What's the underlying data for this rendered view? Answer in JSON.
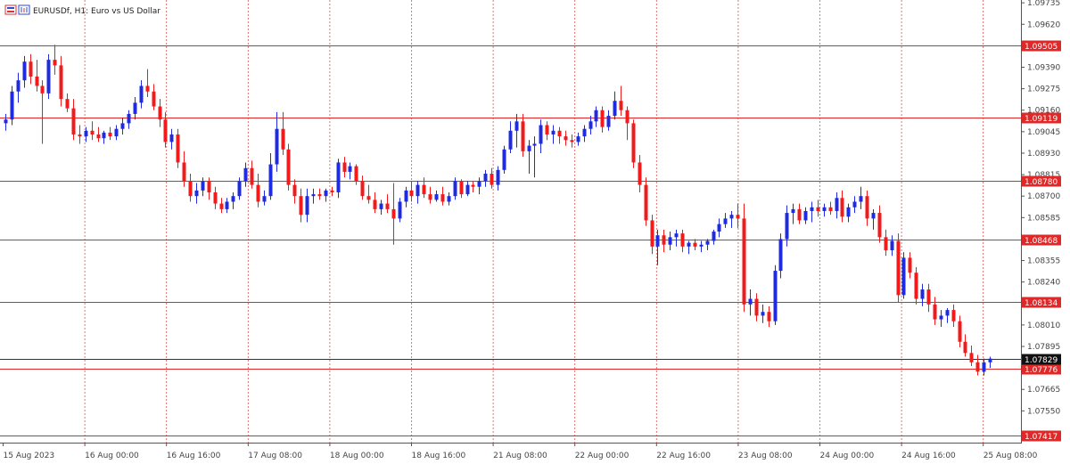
{
  "window": {
    "title": "EURUSDf, H1:  Euro vs US Dollar",
    "icon": "chart-window-icon"
  },
  "colors": {
    "bull": "#1f2be0",
    "bear": "#f21a1a",
    "grid": "#e03030",
    "level": "#e02828",
    "current": "#333333",
    "axis_text": "#444444",
    "background": "#ffffff"
  },
  "chart_data": {
    "type": "candlestick",
    "symbol": "EURUSDf",
    "timeframe": "H1",
    "price_axis_ticks": [
      "1.09735",
      "1.09620",
      "1.09390",
      "1.09275",
      "1.09160",
      "1.09045",
      "1.08930",
      "1.08815",
      "1.08700",
      "1.08585",
      "1.08355",
      "1.08240",
      "1.08010",
      "1.07895",
      "1.07665",
      "1.07550"
    ],
    "time_axis_labels": [
      "15 Aug 2023",
      "16 Aug 00:00",
      "16 Aug 16:00",
      "17 Aug 08:00",
      "18 Aug 00:00",
      "18 Aug 16:00",
      "21 Aug 08:00",
      "22 Aug 00:00",
      "22 Aug 16:00",
      "23 Aug 08:00",
      "24 Aug 00:00",
      "24 Aug 16:00",
      "25 Aug 08:00"
    ],
    "ylim": [
      1.0738,
      1.0975
    ],
    "horizontal_levels": [
      {
        "label": "1.09505",
        "price": 1.09505
      },
      {
        "label": "1.09119",
        "price": 1.09119
      },
      {
        "label": "1.08780",
        "price": 1.0878
      },
      {
        "label": "1.08468",
        "price": 1.08468
      },
      {
        "label": "1.08134",
        "price": 1.08134
      },
      {
        "label": "1.07776",
        "price": 1.07776
      },
      {
        "label": "1.07417",
        "price": 1.07417
      }
    ],
    "current_price": {
      "label": "1.07829",
      "price": 1.07829
    },
    "candles": [
      [
        1.0909,
        1.0914,
        1.0905,
        1.0911
      ],
      [
        1.0911,
        1.0929,
        1.0908,
        1.0926
      ],
      [
        1.0926,
        1.0936,
        1.092,
        1.0932
      ],
      [
        1.0932,
        1.0945,
        1.0928,
        1.0942
      ],
      [
        1.0942,
        1.0946,
        1.093,
        1.0934
      ],
      [
        1.0934,
        1.0943,
        1.0926,
        1.0929
      ],
      [
        1.0929,
        1.0932,
        1.0898,
        1.0925
      ],
      [
        1.0925,
        1.0946,
        1.0922,
        1.0943
      ],
      [
        1.0943,
        1.0951,
        1.0935,
        1.094
      ],
      [
        1.094,
        1.0945,
        1.0918,
        1.0922
      ],
      [
        1.0922,
        1.0925,
        1.0915,
        1.0917
      ],
      [
        1.0917,
        1.0922,
        1.09,
        1.0903
      ],
      [
        1.0903,
        1.0908,
        1.0898,
        1.0902
      ],
      [
        1.0902,
        1.0907,
        1.0899,
        1.0905
      ],
      [
        1.0905,
        1.091,
        1.09,
        1.0903
      ],
      [
        1.0903,
        1.0907,
        1.0899,
        1.0901
      ],
      [
        1.0901,
        1.0905,
        1.0898,
        1.0904
      ],
      [
        1.0904,
        1.0907,
        1.09,
        1.0902
      ],
      [
        1.0902,
        1.0908,
        1.09,
        1.0906
      ],
      [
        1.0906,
        1.0912,
        1.0903,
        1.0909
      ],
      [
        1.0909,
        1.0916,
        1.0906,
        1.0914
      ],
      [
        1.0914,
        1.0923,
        1.0911,
        1.092
      ],
      [
        1.092,
        1.0932,
        1.0917,
        1.0929
      ],
      [
        1.0929,
        1.0938,
        1.0923,
        1.0926
      ],
      [
        1.0926,
        1.093,
        1.0916,
        1.0918
      ],
      [
        1.0918,
        1.0922,
        1.0907,
        1.0911
      ],
      [
        1.0911,
        1.0915,
        1.0896,
        1.0899
      ],
      [
        1.0899,
        1.0906,
        1.0895,
        1.0903
      ],
      [
        1.0903,
        1.0906,
        1.0885,
        1.0888
      ],
      [
        1.0888,
        1.0894,
        1.0875,
        1.0878
      ],
      [
        1.0878,
        1.0882,
        1.0867,
        1.087
      ],
      [
        1.087,
        1.0877,
        1.0866,
        1.0873
      ],
      [
        1.0873,
        1.088,
        1.087,
        1.0878
      ],
      [
        1.0878,
        1.088,
        1.0868,
        1.0872
      ],
      [
        1.0872,
        1.0875,
        1.0863,
        1.0866
      ],
      [
        1.0866,
        1.0869,
        1.0861,
        1.0863
      ],
      [
        1.0863,
        1.0869,
        1.0861,
        1.0867
      ],
      [
        1.0867,
        1.0872,
        1.0863,
        1.087
      ],
      [
        1.087,
        1.088,
        1.0868,
        1.0878
      ],
      [
        1.0878,
        1.0888,
        1.0875,
        1.0885
      ],
      [
        1.0885,
        1.0889,
        1.0874,
        1.0876
      ],
      [
        1.0876,
        1.0882,
        1.0864,
        1.0867
      ],
      [
        1.0867,
        1.0873,
        1.0865,
        1.087
      ],
      [
        1.087,
        1.0893,
        1.0868,
        1.0887
      ],
      [
        1.0887,
        1.0915,
        1.0883,
        1.0906
      ],
      [
        1.0906,
        1.0915,
        1.0892,
        1.0895
      ],
      [
        1.0895,
        1.0898,
        1.0873,
        1.0876
      ],
      [
        1.0876,
        1.0879,
        1.0866,
        1.087
      ],
      [
        1.087,
        1.0874,
        1.0856,
        1.086
      ],
      [
        1.086,
        1.0874,
        1.0856,
        1.087
      ],
      [
        1.087,
        1.0874,
        1.0866,
        1.0871
      ],
      [
        1.0871,
        1.0874,
        1.0868,
        1.087
      ],
      [
        1.087,
        1.0874,
        1.0867,
        1.0873
      ],
      [
        1.0873,
        1.0875,
        1.087,
        1.0872
      ],
      [
        1.0872,
        1.089,
        1.0869,
        1.0888
      ],
      [
        1.0888,
        1.0891,
        1.088,
        1.0883
      ],
      [
        1.0883,
        1.0888,
        1.0879,
        1.0886
      ],
      [
        1.0886,
        1.0887,
        1.0876,
        1.0878
      ],
      [
        1.0878,
        1.0881,
        1.0868,
        1.087
      ],
      [
        1.087,
        1.0876,
        1.0866,
        1.0868
      ],
      [
        1.0868,
        1.0872,
        1.0861,
        1.0863
      ],
      [
        1.0863,
        1.0868,
        1.086,
        1.0866
      ],
      [
        1.0866,
        1.0871,
        1.0861,
        1.0863
      ],
      [
        1.0863,
        1.0877,
        1.0844,
        1.0858
      ],
      [
        1.0858,
        1.0869,
        1.0856,
        1.0867
      ],
      [
        1.0867,
        1.0875,
        1.0864,
        1.0873
      ],
      [
        1.0873,
        1.0878,
        1.0867,
        1.087
      ],
      [
        1.087,
        1.0878,
        1.0866,
        1.0876
      ],
      [
        1.0876,
        1.088,
        1.0869,
        1.0871
      ],
      [
        1.0871,
        1.0875,
        1.0866,
        1.0868
      ],
      [
        1.0868,
        1.0873,
        1.0867,
        1.0871
      ],
      [
        1.0871,
        1.0875,
        1.0865,
        1.0867
      ],
      [
        1.0867,
        1.0872,
        1.0865,
        1.087
      ],
      [
        1.087,
        1.088,
        1.0868,
        1.0878
      ],
      [
        1.0878,
        1.0879,
        1.0869,
        1.0871
      ],
      [
        1.0871,
        1.0878,
        1.087,
        1.0876
      ],
      [
        1.0876,
        1.0878,
        1.0872,
        1.0875
      ],
      [
        1.0875,
        1.088,
        1.0871,
        1.0878
      ],
      [
        1.0878,
        1.0884,
        1.0875,
        1.0882
      ],
      [
        1.0882,
        1.0885,
        1.0874,
        1.0876
      ],
      [
        1.0876,
        1.0886,
        1.0873,
        1.0884
      ],
      [
        1.0884,
        1.0897,
        1.0882,
        1.0895
      ],
      [
        1.0895,
        1.091,
        1.0893,
        1.0905
      ],
      [
        1.0905,
        1.0914,
        1.0896,
        1.091
      ],
      [
        1.091,
        1.0914,
        1.0891,
        1.0894
      ],
      [
        1.0894,
        1.09,
        1.0882,
        1.0897
      ],
      [
        1.0897,
        1.0902,
        1.088,
        1.0898
      ],
      [
        1.0898,
        1.0911,
        1.0893,
        1.0908
      ],
      [
        1.0908,
        1.091,
        1.09,
        1.0903
      ],
      [
        1.0903,
        1.0908,
        1.0898,
        1.0905
      ],
      [
        1.0905,
        1.0907,
        1.0898,
        1.0902
      ],
      [
        1.0902,
        1.0905,
        1.0897,
        1.09
      ],
      [
        1.09,
        1.0903,
        1.0896,
        1.0899
      ],
      [
        1.0899,
        1.0904,
        1.0897,
        1.0902
      ],
      [
        1.0902,
        1.0908,
        1.0899,
        1.0906
      ],
      [
        1.0906,
        1.0913,
        1.0903,
        1.091
      ],
      [
        1.091,
        1.0918,
        1.0907,
        1.0916
      ],
      [
        1.0916,
        1.0918,
        1.0904,
        1.0907
      ],
      [
        1.0907,
        1.0916,
        1.0905,
        1.0913
      ],
      [
        1.0913,
        1.0926,
        1.0911,
        1.0921
      ],
      [
        1.0921,
        1.0929,
        1.0913,
        1.0916
      ],
      [
        1.0916,
        1.0918,
        1.09,
        1.0909
      ],
      [
        1.0909,
        1.0911,
        1.0885,
        1.0888
      ],
      [
        1.0888,
        1.0892,
        1.0872,
        1.0876
      ],
      [
        1.0876,
        1.088,
        1.0854,
        1.0857
      ],
      [
        1.0857,
        1.086,
        1.0839,
        1.0843
      ],
      [
        1.0843,
        1.0852,
        1.0833,
        1.0849
      ],
      [
        1.0849,
        1.0852,
        1.084,
        1.0844
      ],
      [
        1.0844,
        1.0851,
        1.0841,
        1.0848
      ],
      [
        1.0848,
        1.0852,
        1.0843,
        1.085
      ],
      [
        1.085,
        1.0852,
        1.084,
        1.0843
      ],
      [
        1.0843,
        1.0846,
        1.0839,
        1.0845
      ],
      [
        1.0845,
        1.0847,
        1.0841,
        1.0843
      ],
      [
        1.0843,
        1.0846,
        1.084,
        1.0844
      ],
      [
        1.0844,
        1.0847,
        1.0841,
        1.0846
      ],
      [
        1.0846,
        1.0852,
        1.0844,
        1.0851
      ],
      [
        1.0851,
        1.0858,
        1.0848,
        1.0855
      ],
      [
        1.0855,
        1.0861,
        1.0853,
        1.0858
      ],
      [
        1.0858,
        1.0862,
        1.0853,
        1.086
      ],
      [
        1.086,
        1.0866,
        1.0853,
        1.0858
      ],
      [
        1.0858,
        1.0866,
        1.0808,
        1.0812
      ],
      [
        1.0812,
        1.082,
        1.0806,
        1.0815
      ],
      [
        1.0815,
        1.0818,
        1.0803,
        1.0806
      ],
      [
        1.0806,
        1.0812,
        1.0802,
        1.0808
      ],
      [
        1.0808,
        1.0811,
        1.08,
        1.0803
      ],
      [
        1.0803,
        1.0833,
        1.0801,
        1.083
      ],
      [
        1.083,
        1.085,
        1.0826,
        1.0847
      ],
      [
        1.0847,
        1.0865,
        1.0843,
        1.0861
      ],
      [
        1.0861,
        1.0866,
        1.0855,
        1.0863
      ],
      [
        1.0863,
        1.0866,
        1.0855,
        1.0857
      ],
      [
        1.0857,
        1.0864,
        1.0855,
        1.0862
      ],
      [
        1.0862,
        1.0867,
        1.0856,
        1.0864
      ],
      [
        1.0864,
        1.0868,
        1.0859,
        1.0862
      ],
      [
        1.0862,
        1.0866,
        1.0859,
        1.0864
      ],
      [
        1.0864,
        1.0867,
        1.086,
        1.0862
      ],
      [
        1.0862,
        1.0872,
        1.0858,
        1.0869
      ],
      [
        1.0869,
        1.0873,
        1.0856,
        1.0859
      ],
      [
        1.0859,
        1.0866,
        1.0856,
        1.0864
      ],
      [
        1.0864,
        1.087,
        1.0861,
        1.0867
      ],
      [
        1.0867,
        1.0875,
        1.0863,
        1.087
      ],
      [
        1.087,
        1.0873,
        1.0854,
        1.0858
      ],
      [
        1.0858,
        1.0863,
        1.0852,
        1.0861
      ],
      [
        1.0861,
        1.0865,
        1.0845,
        1.0848
      ],
      [
        1.0848,
        1.0852,
        1.0838,
        1.0841
      ],
      [
        1.0841,
        1.0849,
        1.0838,
        1.0846
      ],
      [
        1.0846,
        1.085,
        1.0813,
        1.0817
      ],
      [
        1.0817,
        1.084,
        1.0815,
        1.0837
      ],
      [
        1.0837,
        1.084,
        1.0826,
        1.0829
      ],
      [
        1.0829,
        1.0832,
        1.0812,
        1.0815
      ],
      [
        1.0815,
        1.0823,
        1.0811,
        1.082
      ],
      [
        1.082,
        1.0823,
        1.0808,
        1.0812
      ],
      [
        1.0812,
        1.0816,
        1.0801,
        1.0804
      ],
      [
        1.0804,
        1.0809,
        1.08,
        1.0806
      ],
      [
        1.0806,
        1.081,
        1.0802,
        1.0809
      ],
      [
        1.0809,
        1.0812,
        1.08,
        1.0803
      ],
      [
        1.0803,
        1.0806,
        1.0789,
        1.0792
      ],
      [
        1.0792,
        1.0796,
        1.0784,
        1.0786
      ],
      [
        1.0786,
        1.079,
        1.0779,
        1.0781
      ],
      [
        1.0781,
        1.0785,
        1.0774,
        1.0776
      ],
      [
        1.0776,
        1.0783,
        1.0774,
        1.0781
      ],
      [
        1.0781,
        1.0784,
        1.0778,
        1.0783
      ]
    ]
  }
}
